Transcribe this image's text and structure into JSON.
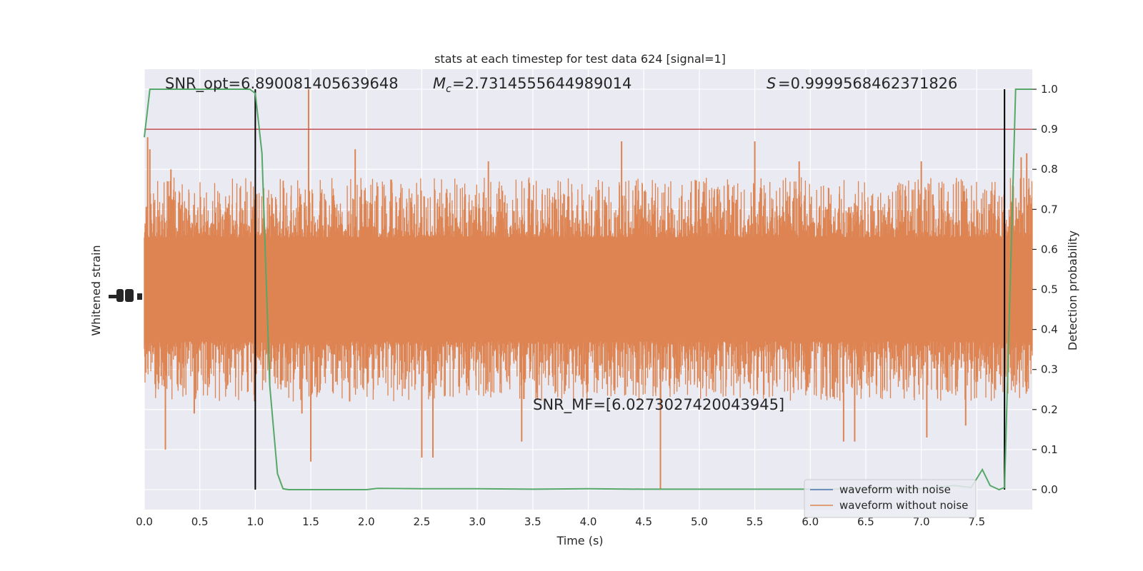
{
  "chart_data": {
    "type": "line",
    "title": "stats at each timestep for test data 624 [signal=1]",
    "xlabel": "Time (s)",
    "ylabel_left": "Whitened strain",
    "ylabel_right": "Detection probability",
    "xlim": [
      0,
      8.0
    ],
    "ylim_right": [
      -0.05,
      1.05
    ],
    "x_ticks": [
      0.0,
      0.5,
      1.0,
      1.5,
      2.0,
      2.5,
      3.0,
      3.5,
      4.0,
      4.5,
      5.0,
      5.5,
      6.0,
      6.5,
      7.0,
      7.5
    ],
    "x_tick_labels": [
      "0.0",
      "0.5",
      "1.0",
      "1.5",
      "2.0",
      "2.5",
      "3.0",
      "3.5",
      "4.0",
      "4.5",
      "5.0",
      "5.5",
      "6.0",
      "6.5",
      "7.0",
      "7.5"
    ],
    "y_right_ticks": [
      0.0,
      0.1,
      0.2,
      0.3,
      0.4,
      0.5,
      0.6,
      0.7,
      0.8,
      0.9,
      1.0
    ],
    "y_right_tick_labels": [
      "0.0",
      "0.1",
      "0.2",
      "0.3",
      "0.4",
      "0.5",
      "0.6",
      "0.7",
      "0.8",
      "0.9",
      "1.0"
    ],
    "grid": true,
    "legend_position": "lower-right",
    "colors": {
      "background": "#eaeaf2",
      "noise_waveform": "#4c72b0",
      "strain": "#dd8452",
      "probability": "#55a868",
      "threshold": "#c44e52",
      "markers": "#000000"
    },
    "annotations": {
      "snr_opt": "SNR_opt=6.890081405639648",
      "mc_value": "=2.7314555644989014",
      "s_value": "=0.9999568462371826",
      "snr_mf": "SNR_MF=[6.0273027420043945]"
    },
    "threshold": 0.9,
    "vertical_markers": [
      1.0,
      7.75
    ],
    "series": [
      {
        "name": "waveform with noise",
        "values": []
      },
      {
        "name": "waveform without noise",
        "band_right_units": [
          0.37,
          0.63
        ],
        "spikes_right_units": [
          [
            0.03,
            0.88
          ],
          [
            0.05,
            0.85
          ],
          [
            0.24,
            0.8
          ],
          [
            0.19,
            0.1
          ],
          [
            0.45,
            0.19
          ],
          [
            1.48,
            1.0
          ],
          [
            1.5,
            0.07
          ],
          [
            1.42,
            0.19
          ],
          [
            1.9,
            0.85
          ],
          [
            1.85,
            0.22
          ],
          [
            2.5,
            0.08
          ],
          [
            2.6,
            0.08
          ],
          [
            3.1,
            0.82
          ],
          [
            3.4,
            0.12
          ],
          [
            4.3,
            0.87
          ],
          [
            4.65,
            0.0
          ],
          [
            5.5,
            0.87
          ],
          [
            5.9,
            0.82
          ],
          [
            6.3,
            0.12
          ],
          [
            6.4,
            0.12
          ],
          [
            7.0,
            0.82
          ],
          [
            7.4,
            0.16
          ],
          [
            7.9,
            0.83
          ],
          [
            7.95,
            0.84
          ],
          [
            7.05,
            0.13
          ]
        ]
      },
      {
        "name": "detection probability",
        "x": [
          0.0,
          0.05,
          0.2,
          0.4,
          0.6,
          0.8,
          0.95,
          1.0,
          1.06,
          1.13,
          1.2,
          1.25,
          1.3,
          1.5,
          2.0,
          2.1,
          2.5,
          3.0,
          3.5,
          4.0,
          4.5,
          5.0,
          5.5,
          6.0,
          6.5,
          7.0,
          7.3,
          7.45,
          7.55,
          7.62,
          7.7,
          7.75,
          7.78,
          7.85,
          7.9,
          8.0
        ],
        "y": [
          0.88,
          1.0,
          1.0,
          1.0,
          1.0,
          1.0,
          1.0,
          0.99,
          0.84,
          0.26,
          0.04,
          0.002,
          0.0,
          0.0,
          0.0,
          0.003,
          0.002,
          0.002,
          0.001,
          0.002,
          0.001,
          0.001,
          0.001,
          0.001,
          0.002,
          0.002,
          0.01,
          0.005,
          0.05,
          0.01,
          0.0,
          0.005,
          0.3,
          1.0,
          1.0,
          1.0
        ]
      }
    ]
  }
}
